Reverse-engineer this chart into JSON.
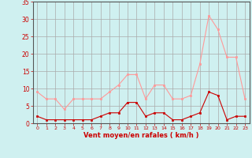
{
  "hours": [
    0,
    1,
    2,
    3,
    4,
    5,
    6,
    7,
    8,
    9,
    10,
    11,
    12,
    13,
    14,
    15,
    16,
    17,
    18,
    19,
    20,
    21,
    22,
    23
  ],
  "wind_avg": [
    2,
    1,
    1,
    1,
    1,
    1,
    1,
    2,
    3,
    3,
    6,
    6,
    2,
    3,
    3,
    1,
    1,
    2,
    3,
    9,
    8,
    1,
    2,
    2
  ],
  "wind_gust": [
    9,
    7,
    7,
    4,
    7,
    7,
    7,
    7,
    9,
    11,
    14,
    14,
    7,
    11,
    11,
    7,
    7,
    8,
    17,
    31,
    27,
    19,
    19,
    7
  ],
  "bg_color": "#cff0f0",
  "grid_color": "#aaaaaa",
  "line_avg_color": "#cc0000",
  "line_gust_color": "#ff9999",
  "xlabel": "Vent moyen/en rafales ( km/h )",
  "xlabel_color": "#cc0000",
  "tick_color": "#cc0000",
  "spine_color": "#555555",
  "ylim": [
    0,
    35
  ],
  "yticks": [
    0,
    5,
    10,
    15,
    20,
    25,
    30,
    35
  ],
  "figsize": [
    3.2,
    2.0
  ],
  "dpi": 100
}
